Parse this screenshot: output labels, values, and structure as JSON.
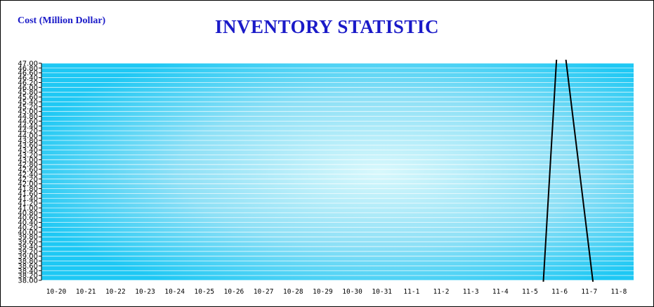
{
  "chart_data": {
    "type": "line",
    "title": "INVENTORY STATISTIC",
    "ylabel": "Cost (Million Dollar)",
    "xlabel": "",
    "categories": [
      "10-20",
      "10-21",
      "10-22",
      "10-23",
      "10-24",
      "10-25",
      "10-26",
      "10-27",
      "10-28",
      "10-29",
      "10-30",
      "10-31",
      "11-1",
      "11-2",
      "11-3",
      "11-4",
      "11-5",
      "11-6",
      "11-7",
      "11-8"
    ],
    "ylim": [
      38.0,
      47.0
    ],
    "ytick_step": 0.2,
    "grid": true,
    "background": "gradient cyan",
    "colors": {
      "title": "#1a1ac8",
      "line": "#000000",
      "grid": "#ffffff",
      "plot_edge": "#1ec8f4",
      "plot_center": "#d8f8fc"
    },
    "series": [
      {
        "values": [
          null,
          null,
          null,
          null,
          null,
          null,
          null,
          null,
          null,
          null,
          null,
          null,
          null,
          null,
          null,
          null,
          37.9,
          49.3,
          37.7,
          null
        ]
      }
    ],
    "x_offset": [
      0,
      0,
      0,
      0,
      0,
      0,
      0,
      0,
      0,
      0,
      0,
      0,
      0,
      0,
      0,
      0,
      0.45,
      0.0,
      0.15,
      0
    ]
  }
}
